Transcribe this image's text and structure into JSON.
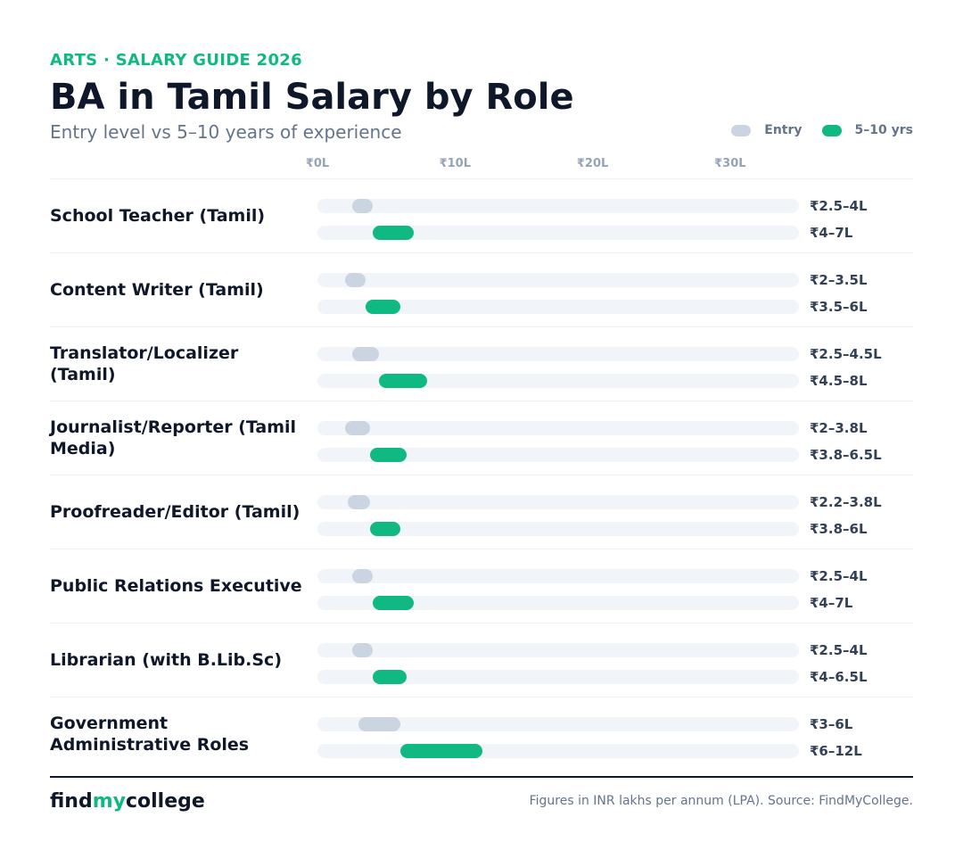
{
  "header": {
    "eyebrow": "ARTS · SALARY GUIDE 2026",
    "title": "BA in Tamil Salary by Role",
    "subtitle": "Entry level vs 5–10 years of experience"
  },
  "legend": {
    "entry_label": "Entry",
    "exp_label": "5–10 yrs"
  },
  "colors": {
    "entry": "#cbd5e1",
    "experienced": "#10b981",
    "track": "#f1f4f8",
    "accent": "#10b981"
  },
  "chart_data": {
    "type": "bar",
    "orientation": "horizontal-range",
    "units": "INR lakhs per annum",
    "xlim": [
      0,
      35
    ],
    "ticks": [
      {
        "value": 0,
        "label": "₹0L"
      },
      {
        "value": 10,
        "label": "₹10L"
      },
      {
        "value": 20,
        "label": "₹20L"
      },
      {
        "value": 30,
        "label": "₹30L"
      }
    ],
    "series_labels": [
      "Entry",
      "5–10 yrs"
    ],
    "rows": [
      {
        "role": "School Teacher (Tamil)",
        "entry": [
          2.5,
          4
        ],
        "entry_label": "₹2.5–4L",
        "exp": [
          4,
          7
        ],
        "exp_label": "₹4–7L"
      },
      {
        "role": "Content Writer (Tamil)",
        "entry": [
          2,
          3.5
        ],
        "entry_label": "₹2–3.5L",
        "exp": [
          3.5,
          6
        ],
        "exp_label": "₹3.5–6L"
      },
      {
        "role": "Translator/Localizer (Tamil)",
        "entry": [
          2.5,
          4.5
        ],
        "entry_label": "₹2.5–4.5L",
        "exp": [
          4.5,
          8
        ],
        "exp_label": "₹4.5–8L"
      },
      {
        "role": "Journalist/Reporter (Tamil Media)",
        "entry": [
          2,
          3.8
        ],
        "entry_label": "₹2–3.8L",
        "exp": [
          3.8,
          6.5
        ],
        "exp_label": "₹3.8–6.5L"
      },
      {
        "role": "Proofreader/Editor (Tamil)",
        "entry": [
          2.2,
          3.8
        ],
        "entry_label": "₹2.2–3.8L",
        "exp": [
          3.8,
          6
        ],
        "exp_label": "₹3.8–6L"
      },
      {
        "role": "Public Relations Executive",
        "entry": [
          2.5,
          4
        ],
        "entry_label": "₹2.5–4L",
        "exp": [
          4,
          7
        ],
        "exp_label": "₹4–7L"
      },
      {
        "role": "Librarian (with B.Lib.Sc)",
        "entry": [
          2.5,
          4
        ],
        "entry_label": "₹2.5–4L",
        "exp": [
          4,
          6.5
        ],
        "exp_label": "₹4–6.5L"
      },
      {
        "role": "Government Administrative Roles",
        "entry": [
          3,
          6
        ],
        "entry_label": "₹3–6L",
        "exp": [
          6,
          12
        ],
        "exp_label": "₹6–12L"
      }
    ]
  },
  "footer": {
    "brand_a": "find",
    "brand_b": "my",
    "brand_c": "college",
    "source": "Figures in INR lakhs per annum (LPA). Source: FindMyCollege."
  }
}
